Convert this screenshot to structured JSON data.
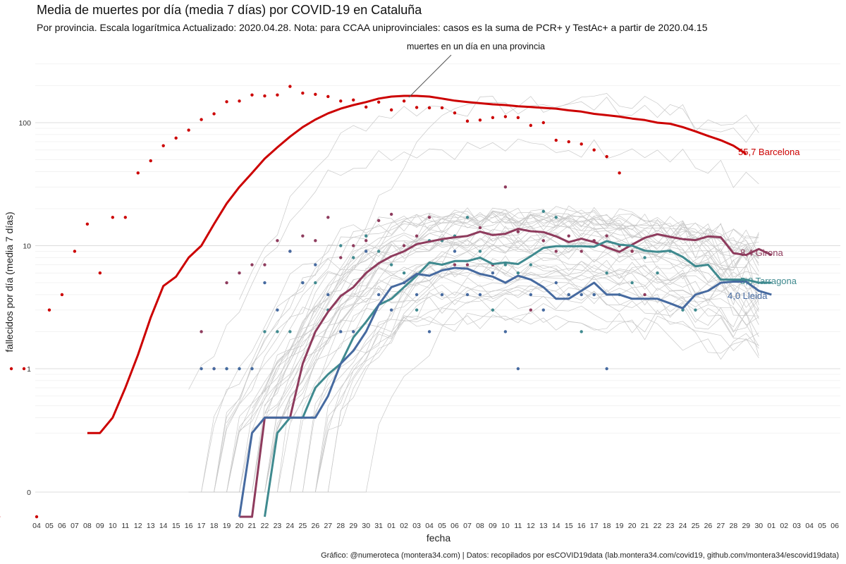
{
  "title": "Media de muertes por día (media 7 días) por COVID-19 en Cataluña",
  "subtitle": "Por provincia. Escala logarítmica  Actualizado: 2020.04.28. Nota: para CCAA uniprovinciales: casos es la suma de PCR+ y TestAc+ a partir de 2020.04.15",
  "caption": "Gráfico: @numeroteca (montera34.com) | Datos: recopilados por esCOVID19data (lab.montera34.com/covid19, github.com/montera34/escovid19data)",
  "annotation": "muertes en un día en una provincia",
  "chart_data": {
    "type": "line",
    "scale_y": "log",
    "xlabel": "fecha",
    "ylabel": "fallecidos por día (media 7 días)",
    "x_ticks": [
      "04",
      "05",
      "06",
      "07",
      "08",
      "09",
      "10",
      "11",
      "12",
      "13",
      "14",
      "15",
      "16",
      "17",
      "18",
      "19",
      "20",
      "21",
      "22",
      "23",
      "24",
      "25",
      "26",
      "27",
      "28",
      "29",
      "30",
      "31",
      "01",
      "02",
      "03",
      "04",
      "05",
      "06",
      "07",
      "08",
      "09",
      "10",
      "11",
      "12",
      "13",
      "14",
      "15",
      "16",
      "17",
      "18",
      "19",
      "20",
      "21",
      "22",
      "23",
      "24",
      "25",
      "26",
      "27",
      "28",
      "29",
      "30",
      "01",
      "02",
      "03",
      "04",
      "05",
      "06"
    ],
    "y_ticks": [
      "0",
      "1",
      "10",
      "100"
    ],
    "grid": true,
    "legend": "end-of-line labels",
    "background_series": "other Spanish provinces (grey)",
    "series": [
      {
        "name": "Barcelona",
        "color": "#cc0000",
        "end_label": "55,7 Barcelona",
        "x_start": 4,
        "values": [
          0.3,
          0.3,
          0.4,
          0.7,
          1.3,
          2.6,
          4.7,
          5.6,
          8,
          10,
          15,
          22,
          30,
          39,
          51,
          63,
          77,
          92,
          106,
          119,
          130,
          139,
          147,
          157,
          163,
          165,
          165,
          163,
          157,
          151,
          147,
          144,
          141,
          139,
          136,
          134,
          132,
          130,
          126,
          123,
          118,
          115,
          112,
          108,
          105,
          100,
          98,
          92,
          85,
          78,
          72,
          65,
          55.7
        ],
        "daily": [
          1,
          0,
          0,
          0,
          0,
          0,
          1,
          1,
          0,
          3,
          4,
          9,
          15,
          6,
          17,
          17,
          39,
          49,
          65,
          75,
          87,
          106,
          118,
          148,
          150,
          168,
          165,
          168,
          197,
          174,
          170,
          163,
          150,
          153,
          134,
          147,
          127,
          150,
          133,
          132,
          132,
          120,
          103,
          105,
          110,
          112,
          110,
          95,
          100,
          72,
          70,
          67,
          60,
          53,
          39,
          9
        ]
      },
      {
        "name": "Girona",
        "color": "#8e3b5d",
        "end_label": "8,4 Girona",
        "x_start": 16,
        "values": [
          0,
          0,
          0.4,
          0.4,
          0.4,
          1.1,
          2,
          2.9,
          3.9,
          4.6,
          6,
          7.2,
          8.2,
          9,
          10.3,
          10.8,
          11.3,
          11.7,
          12,
          13,
          12.2,
          12.5,
          13.7,
          13.1,
          12.9,
          11.9,
          10.7,
          11.4,
          10.7,
          9.7,
          8.9,
          10.2,
          11.6,
          12.4,
          11.8,
          11.3,
          11.1,
          11.9,
          11.7,
          8.7,
          8.4,
          9.4,
          8.4
        ],
        "daily": [
          2,
          1,
          5,
          6,
          7,
          7,
          11,
          9,
          12,
          11,
          17,
          8,
          10,
          11,
          16,
          18,
          10,
          12,
          17,
          11,
          7,
          7,
          14,
          7,
          30,
          13,
          3,
          11,
          9,
          12,
          9,
          11,
          12,
          10,
          9,
          4
        ]
      },
      {
        "name": "Tarragona",
        "color": "#3f8a8f",
        "end_label": "5,0 Tarragona",
        "x_start": 18,
        "values": [
          0,
          0.3,
          0.4,
          0.4,
          0.7,
          0.9,
          1.1,
          1.8,
          2.4,
          3.3,
          3.7,
          4.6,
          5.7,
          7.3,
          7,
          7.5,
          7.5,
          8,
          7.1,
          7.3,
          7.1,
          8.2,
          9.6,
          9.9,
          9.9,
          9.9,
          9.8,
          10.9,
          10.2,
          10,
          9.1,
          8.9,
          9.1,
          8.1,
          6.8,
          7,
          5.3,
          5.3,
          5.3,
          5,
          5
        ],
        "daily": [
          1,
          1,
          1,
          2,
          2,
          2,
          5,
          5,
          3,
          10,
          8,
          12,
          9,
          7,
          6,
          3,
          11,
          11,
          12,
          17,
          9,
          3,
          7,
          6,
          7,
          19,
          17,
          4,
          2,
          4,
          6,
          4,
          5,
          8,
          6,
          9,
          3,
          3
        ]
      },
      {
        "name": "Lleida",
        "color": "#466aa0",
        "end_label": "4,0 Lleida",
        "x_start": 16,
        "values": [
          0,
          0.3,
          0.4,
          0.4,
          0.4,
          0.4,
          0.4,
          0.6,
          1.1,
          1.4,
          2,
          3.3,
          4.6,
          5,
          5.9,
          5.7,
          6.3,
          6.6,
          6.5,
          5.9,
          5.6,
          5,
          5.7,
          5.3,
          4.6,
          3.7,
          3.7,
          4.3,
          5,
          4,
          4,
          3.7,
          3.7,
          3.7,
          3.4,
          3.1,
          4,
          4.3,
          5,
          5.1,
          5.1,
          4.3,
          4
        ],
        "daily": [
          1,
          1,
          1,
          1,
          1,
          5,
          3,
          9,
          5,
          7,
          4,
          2,
          2,
          9,
          4,
          3,
          5,
          4,
          2,
          4,
          9,
          4,
          4,
          6,
          2,
          1,
          4,
          3,
          5,
          4,
          4,
          4,
          1
        ]
      }
    ]
  }
}
